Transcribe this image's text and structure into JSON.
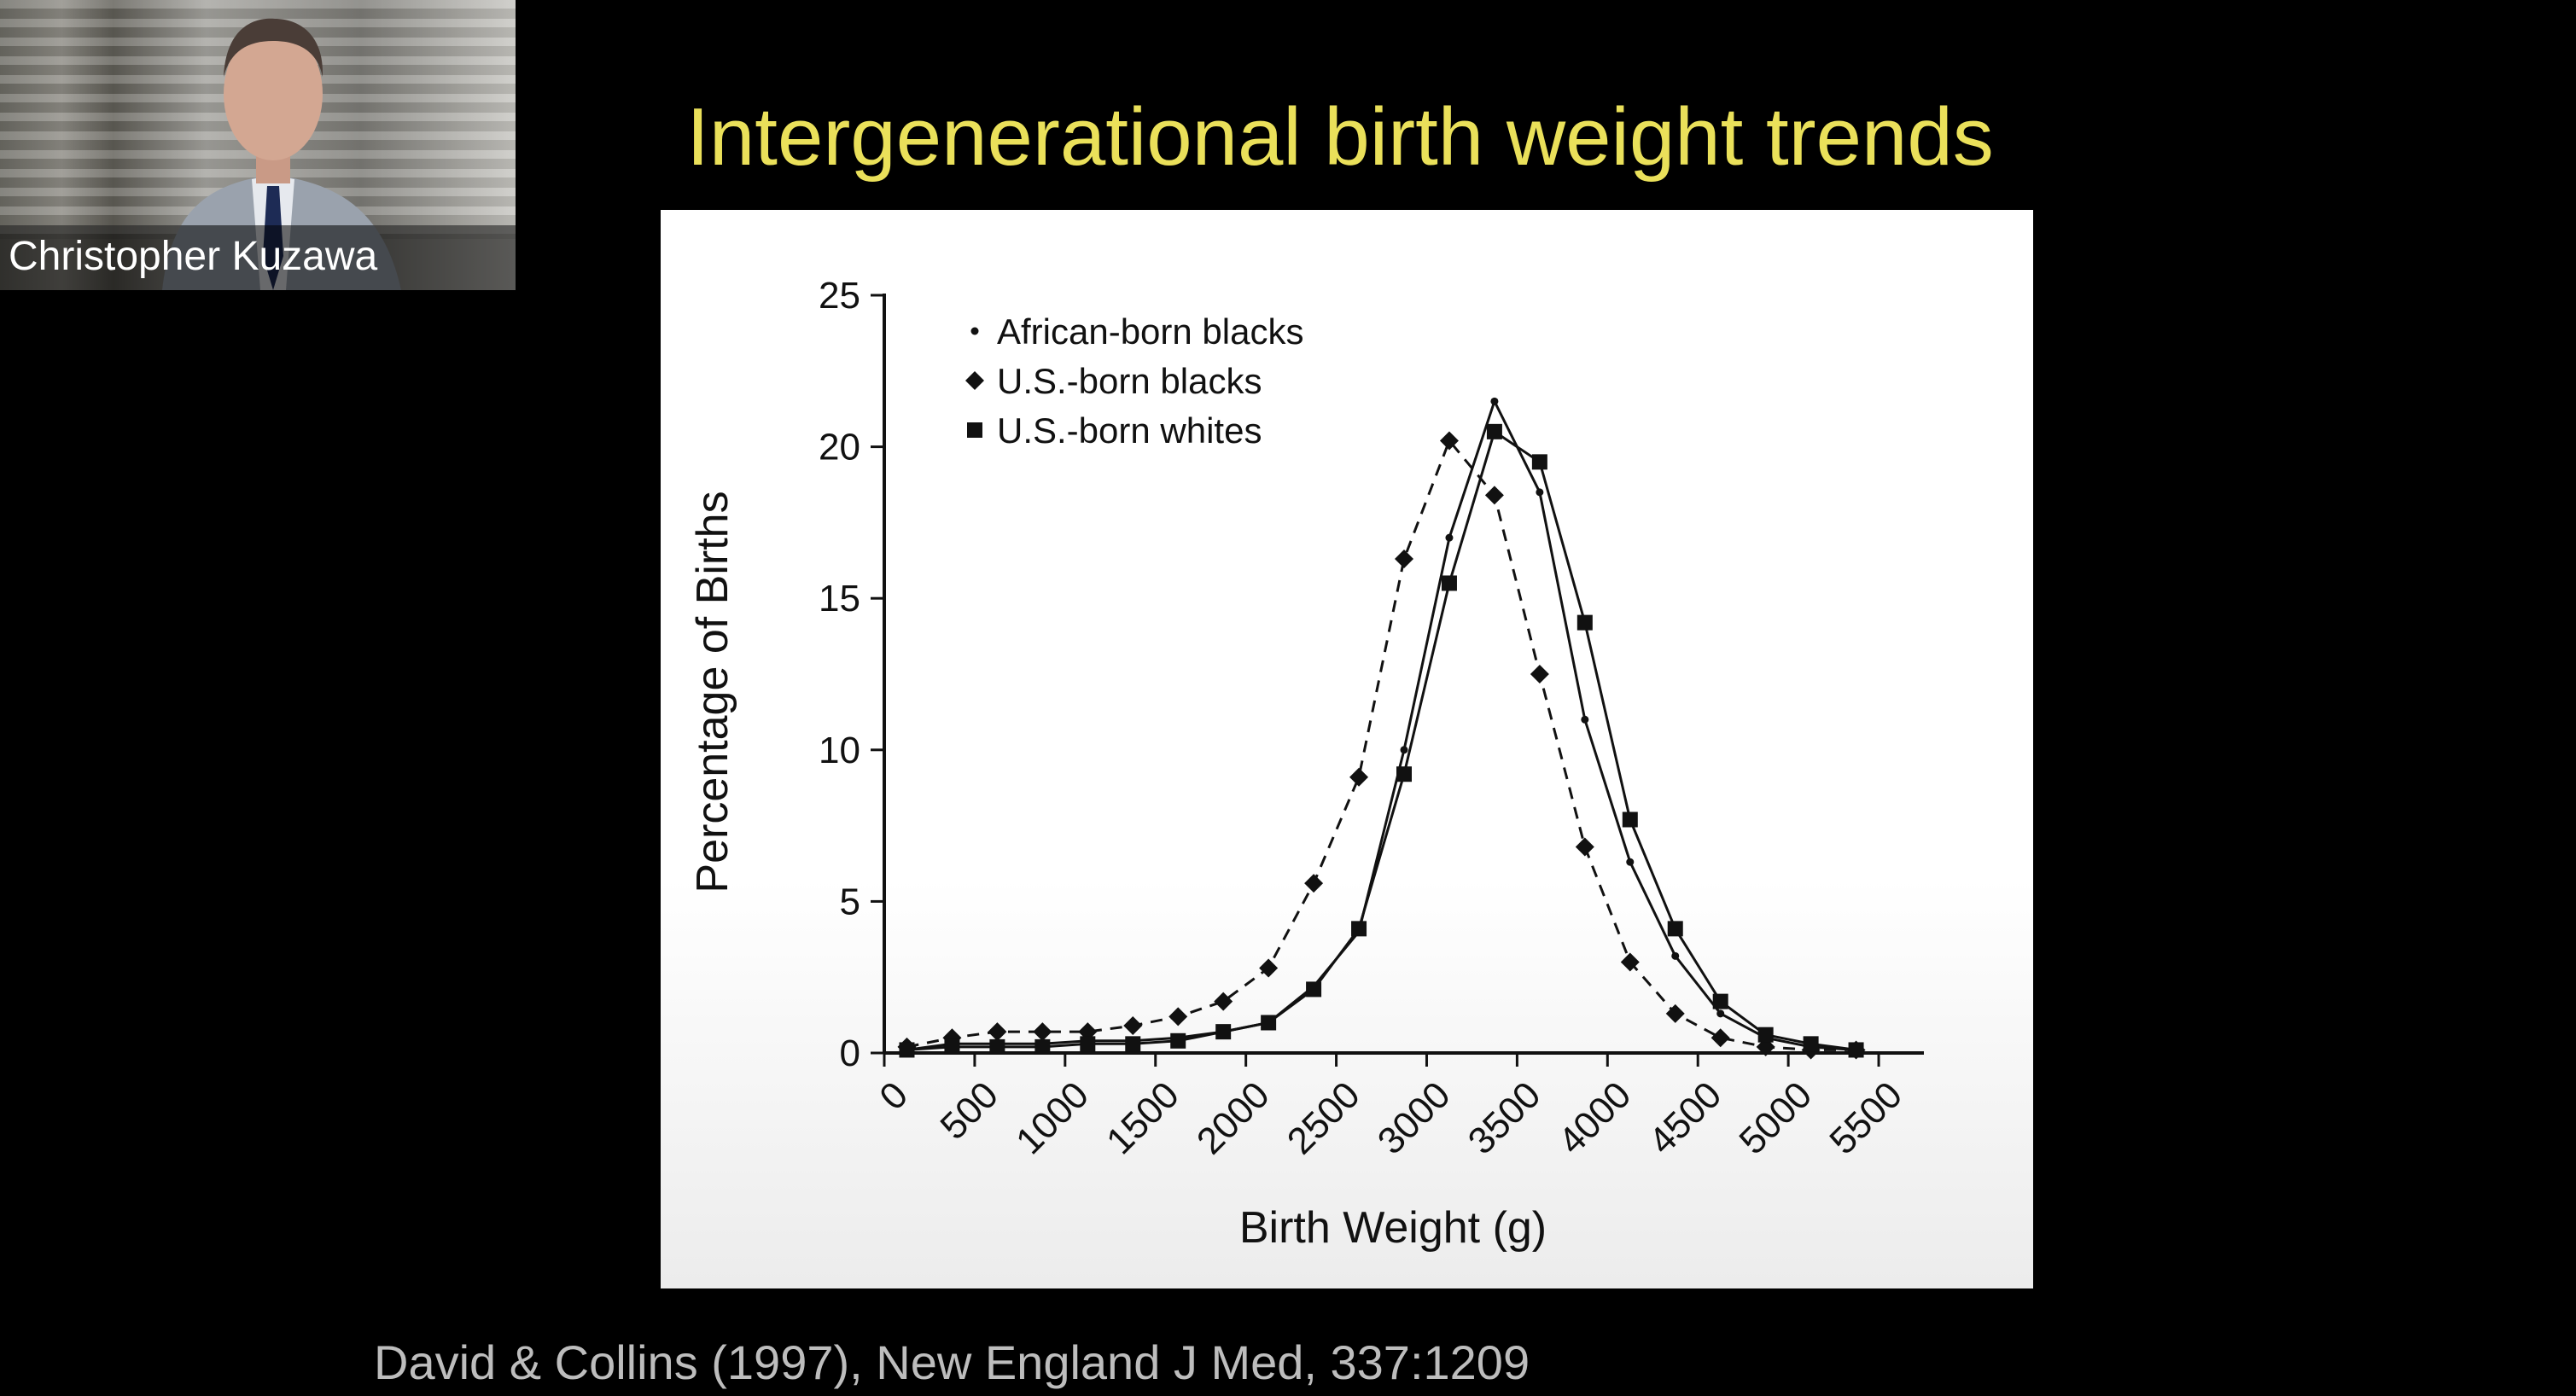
{
  "video": {
    "participant_name": "Christopher Kuzawa"
  },
  "slide": {
    "title": "Intergenerational birth weight trends",
    "citation": "David & Collins (1997), New England J Med, 337:1209"
  },
  "colors": {
    "background": "#000000",
    "title": "#eae05a",
    "citation": "#bdbdbd",
    "plot_ink": "#111111"
  },
  "chart_data": {
    "type": "line",
    "title": "",
    "xlabel": "Birth Weight (g)",
    "ylabel": "Percentage of Births",
    "xlim": [
      0,
      5750
    ],
    "ylim": [
      0,
      25
    ],
    "x_ticks": [
      0,
      500,
      1000,
      1500,
      2000,
      2500,
      3000,
      3500,
      4000,
      4500,
      5000,
      5500
    ],
    "y_ticks": [
      0,
      5,
      10,
      15,
      20,
      25
    ],
    "x": [
      125,
      375,
      625,
      875,
      1125,
      1375,
      1625,
      1875,
      2125,
      2375,
      2625,
      2875,
      3125,
      3375,
      3625,
      3875,
      4125,
      4375,
      4625,
      4875,
      5125,
      5375
    ],
    "grid": false,
    "legend_position": "top-left",
    "series": [
      {
        "name": "African-born blacks",
        "marker": "dot",
        "line": "solid",
        "values": [
          0.1,
          0.3,
          0.3,
          0.3,
          0.4,
          0.4,
          0.5,
          0.7,
          1.0,
          2.2,
          4.0,
          10.0,
          17.0,
          21.5,
          18.5,
          11.0,
          6.3,
          3.2,
          1.3,
          0.5,
          0.2,
          0.1
        ]
      },
      {
        "name": "U.S.-born blacks",
        "marker": "diamond",
        "line": "dashed",
        "values": [
          0.2,
          0.5,
          0.7,
          0.7,
          0.7,
          0.9,
          1.2,
          1.7,
          2.8,
          5.6,
          9.1,
          16.3,
          20.2,
          18.4,
          12.5,
          6.8,
          3.0,
          1.3,
          0.5,
          0.2,
          0.1,
          0.1
        ]
      },
      {
        "name": "U.S.-born whites",
        "marker": "square",
        "line": "solid",
        "values": [
          0.1,
          0.2,
          0.2,
          0.2,
          0.3,
          0.3,
          0.4,
          0.7,
          1.0,
          2.1,
          4.1,
          9.2,
          15.5,
          20.5,
          19.5,
          14.2,
          7.7,
          4.1,
          1.7,
          0.6,
          0.3,
          0.1
        ]
      }
    ]
  }
}
